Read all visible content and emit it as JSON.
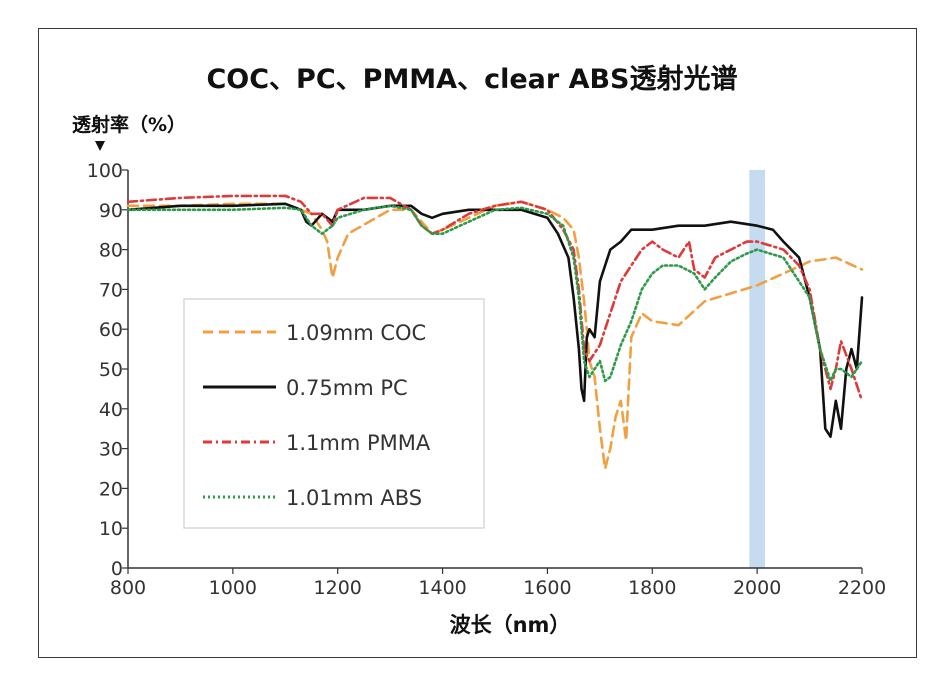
{
  "chart_data": {
    "type": "line",
    "title": "COC、PC、PMMA、clear ABS透射光谱",
    "ylabel": "透射率（%）",
    "xlabel": "波长（nm）",
    "xlim": [
      800,
      2200
    ],
    "ylim": [
      0,
      100
    ],
    "xticks": [
      800,
      1000,
      1200,
      1400,
      1600,
      1800,
      2000,
      2200
    ],
    "yticks": [
      0,
      10,
      20,
      30,
      40,
      50,
      60,
      70,
      80,
      90,
      100
    ],
    "highlight_band": {
      "x_start": 1985,
      "x_end": 2015,
      "color": "#c5dcf0"
    },
    "legend_position": "center-left",
    "series": [
      {
        "name": "1.09mm COC",
        "color": "#f0a040",
        "style": "dashed",
        "x": [
          800,
          900,
          1000,
          1100,
          1130,
          1150,
          1170,
          1180,
          1190,
          1200,
          1220,
          1300,
          1340,
          1360,
          1380,
          1400,
          1500,
          1550,
          1600,
          1630,
          1650,
          1660,
          1670,
          1675,
          1680,
          1690,
          1700,
          1710,
          1720,
          1730,
          1740,
          1750,
          1760,
          1780,
          1800,
          1850,
          1900,
          1950,
          2000,
          2050,
          2100,
          2150,
          2200
        ],
        "y": [
          91,
          91,
          91.5,
          91.5,
          90,
          89,
          85,
          82,
          73,
          78,
          84,
          90,
          90,
          87,
          84,
          85,
          91,
          92,
          90,
          88,
          85,
          78,
          67,
          60,
          52,
          48,
          35,
          25,
          30,
          38,
          42,
          32,
          58,
          64,
          62,
          61,
          67,
          69,
          71,
          74,
          77,
          78,
          75
        ]
      },
      {
        "name": "0.75mm PC",
        "color": "#111111",
        "style": "solid",
        "x": [
          800,
          900,
          1000,
          1100,
          1130,
          1140,
          1150,
          1170,
          1190,
          1200,
          1250,
          1300,
          1340,
          1360,
          1380,
          1400,
          1450,
          1500,
          1550,
          1600,
          1620,
          1640,
          1650,
          1660,
          1665,
          1670,
          1675,
          1680,
          1690,
          1700,
          1720,
          1740,
          1760,
          1800,
          1850,
          1900,
          1950,
          2000,
          2030,
          2050,
          2080,
          2100,
          2120,
          2130,
          2140,
          2150,
          2160,
          2170,
          2180,
          2190,
          2200
        ],
        "y": [
          90,
          91,
          91,
          91.5,
          90,
          87,
          86,
          89,
          87,
          90,
          90,
          91,
          91,
          89,
          88,
          89,
          90,
          90,
          90,
          88,
          84,
          78,
          68,
          55,
          45,
          42,
          58,
          60,
          58,
          72,
          80,
          82,
          85,
          85,
          86,
          86,
          87,
          86,
          85,
          82,
          78,
          68,
          55,
          35,
          33,
          42,
          35,
          50,
          55,
          50,
          68
        ]
      },
      {
        "name": "1.1mm PMMA",
        "color": "#dd3a3a",
        "style": "dashdot",
        "x": [
          800,
          900,
          1000,
          1100,
          1130,
          1150,
          1170,
          1190,
          1200,
          1250,
          1300,
          1340,
          1360,
          1380,
          1400,
          1450,
          1500,
          1550,
          1600,
          1630,
          1650,
          1660,
          1670,
          1680,
          1690,
          1700,
          1720,
          1740,
          1760,
          1780,
          1800,
          1820,
          1850,
          1870,
          1880,
          1900,
          1920,
          1950,
          1980,
          2000,
          2050,
          2080,
          2100,
          2120,
          2140,
          2150,
          2160,
          2180,
          2200
        ],
        "y": [
          92,
          93,
          93.5,
          93.5,
          92,
          89,
          89,
          86,
          90,
          93,
          93,
          90,
          86,
          84,
          85,
          89,
          91,
          92,
          90,
          85,
          80,
          70,
          55,
          52,
          54,
          56,
          64,
          72,
          76,
          80,
          82,
          80,
          78,
          82,
          75,
          73,
          78,
          80,
          82,
          82,
          80,
          76,
          70,
          55,
          45,
          50,
          57,
          50,
          42
        ]
      },
      {
        "name": "1.01mm ABS",
        "color": "#2e9a4a",
        "style": "dotted",
        "x": [
          800,
          900,
          1000,
          1100,
          1130,
          1150,
          1170,
          1190,
          1200,
          1250,
          1300,
          1340,
          1360,
          1380,
          1400,
          1450,
          1500,
          1550,
          1600,
          1630,
          1650,
          1660,
          1670,
          1680,
          1690,
          1700,
          1710,
          1720,
          1740,
          1760,
          1780,
          1800,
          1820,
          1850,
          1880,
          1900,
          1920,
          1950,
          1980,
          2000,
          2050,
          2080,
          2100,
          2120,
          2140,
          2150,
          2160,
          2180,
          2200
        ],
        "y": [
          90,
          90,
          90,
          90.5,
          90,
          86,
          84,
          86,
          88,
          90,
          91,
          90,
          86,
          84,
          84,
          87,
          90,
          90.5,
          89,
          86,
          78,
          68,
          52,
          48,
          50,
          52,
          47,
          48,
          56,
          62,
          70,
          74,
          76,
          76,
          74,
          70,
          73,
          77,
          79,
          80,
          78,
          72,
          68,
          55,
          47,
          50,
          50,
          48,
          52
        ]
      }
    ]
  }
}
